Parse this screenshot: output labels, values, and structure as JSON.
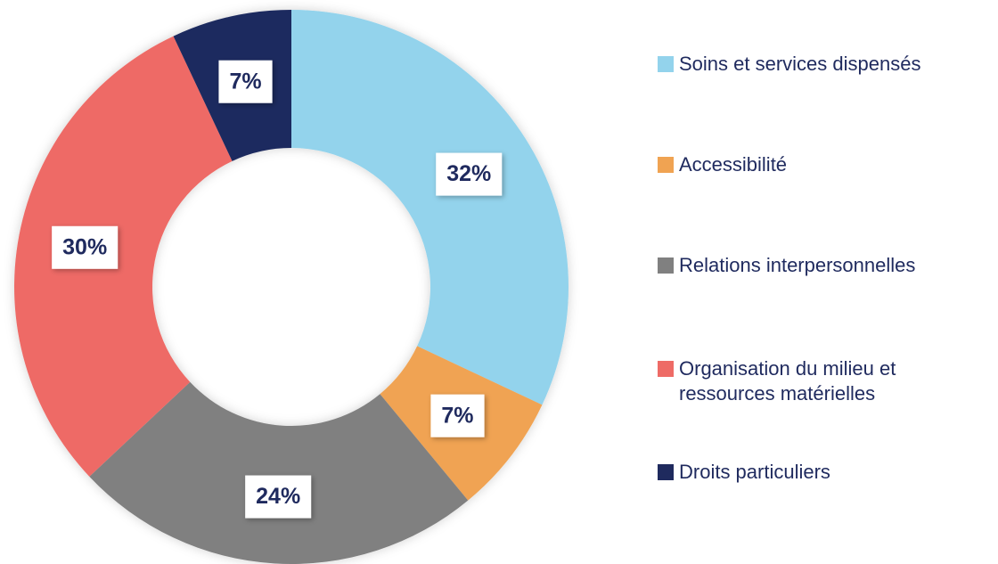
{
  "chart_data": {
    "type": "donut",
    "categories": [
      "Soins et services dispensés",
      "Accessibilité",
      "Relations interpersonnelles",
      "Organisation du milieu et ressources matérielles",
      "Droits particuliers"
    ],
    "values": [
      32,
      7,
      24,
      30,
      7
    ],
    "value_labels": [
      "32%",
      "7%",
      "24%",
      "30%",
      "7%"
    ],
    "colors": [
      "#93d3ec",
      "#f0a352",
      "#808080",
      "#ee6b66",
      "#1f2a5e"
    ],
    "legend": "right"
  }
}
